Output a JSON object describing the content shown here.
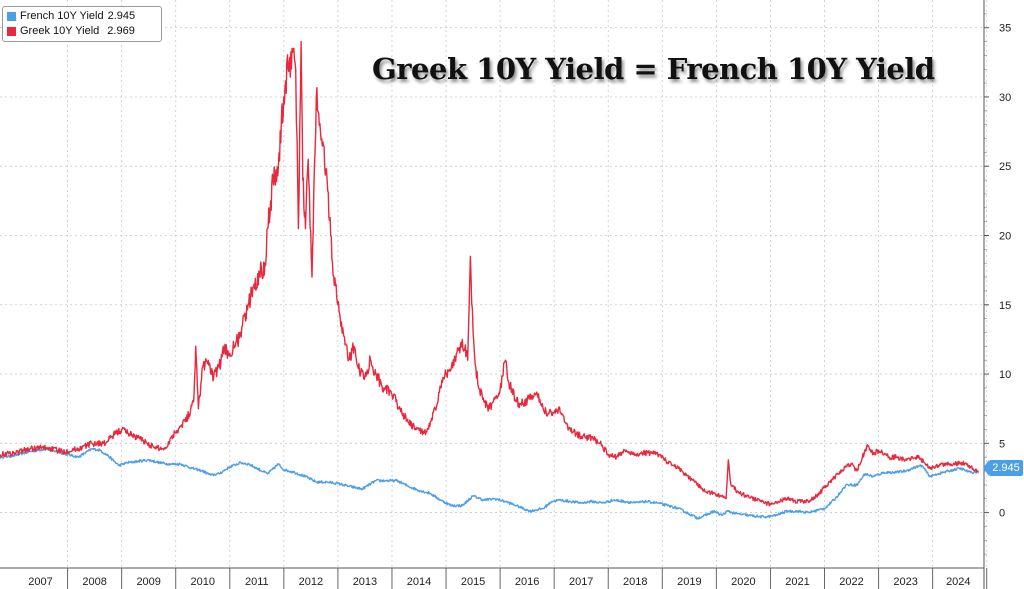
{
  "chart_data": {
    "type": "line",
    "title": "Greek 10Y Yield = French 10Y Yield",
    "xlabel": "",
    "ylabel": "",
    "x_tick_labels": [
      "2007",
      "2008",
      "2009",
      "2010",
      "2011",
      "2012",
      "2013",
      "2014",
      "2015",
      "2016",
      "2017",
      "2018",
      "2019",
      "2020",
      "2021",
      "2022",
      "2023",
      "2024"
    ],
    "y_ticks": [
      0,
      5,
      10,
      15,
      20,
      25,
      30,
      35
    ],
    "ylim": [
      -4,
      37
    ],
    "xlim": [
      2006.75,
      2024.95
    ],
    "grid": true,
    "legend_position": "top-left",
    "last_value_badge": "2.945",
    "series": [
      {
        "name": "French 10Y Yield",
        "legend_label": "French 10Y Yield",
        "last_value": "2.945",
        "color": "#4b9fe8",
        "points": [
          [
            2006.75,
            4.0
          ],
          [
            2007.0,
            4.1
          ],
          [
            2007.3,
            4.4
          ],
          [
            2007.6,
            4.6
          ],
          [
            2007.9,
            4.3
          ],
          [
            2008.2,
            4.0
          ],
          [
            2008.45,
            4.6
          ],
          [
            2008.6,
            4.5
          ],
          [
            2008.75,
            4.1
          ],
          [
            2008.95,
            3.4
          ],
          [
            2009.1,
            3.6
          ],
          [
            2009.3,
            3.7
          ],
          [
            2009.5,
            3.8
          ],
          [
            2009.7,
            3.6
          ],
          [
            2009.9,
            3.5
          ],
          [
            2010.1,
            3.5
          ],
          [
            2010.3,
            3.2
          ],
          [
            2010.5,
            3.0
          ],
          [
            2010.65,
            2.7
          ],
          [
            2010.8,
            2.8
          ],
          [
            2011.0,
            3.3
          ],
          [
            2011.2,
            3.6
          ],
          [
            2011.35,
            3.5
          ],
          [
            2011.5,
            3.2
          ],
          [
            2011.7,
            2.8
          ],
          [
            2011.9,
            3.5
          ],
          [
            2012.0,
            3.1
          ],
          [
            2012.2,
            2.9
          ],
          [
            2012.4,
            2.6
          ],
          [
            2012.6,
            2.2
          ],
          [
            2012.8,
            2.2
          ],
          [
            2013.0,
            2.1
          ],
          [
            2013.2,
            1.9
          ],
          [
            2013.45,
            1.7
          ],
          [
            2013.7,
            2.3
          ],
          [
            2013.9,
            2.3
          ],
          [
            2014.1,
            2.3
          ],
          [
            2014.3,
            1.9
          ],
          [
            2014.5,
            1.6
          ],
          [
            2014.7,
            1.4
          ],
          [
            2014.9,
            0.9
          ],
          [
            2015.1,
            0.5
          ],
          [
            2015.3,
            0.5
          ],
          [
            2015.5,
            1.2
          ],
          [
            2015.7,
            0.9
          ],
          [
            2015.9,
            1.0
          ],
          [
            2016.1,
            0.8
          ],
          [
            2016.3,
            0.5
          ],
          [
            2016.55,
            0.1
          ],
          [
            2016.8,
            0.3
          ],
          [
            2016.95,
            0.8
          ],
          [
            2017.1,
            0.9
          ],
          [
            2017.3,
            0.8
          ],
          [
            2017.5,
            0.7
          ],
          [
            2017.7,
            0.8
          ],
          [
            2017.9,
            0.7
          ],
          [
            2018.1,
            0.9
          ],
          [
            2018.3,
            0.8
          ],
          [
            2018.5,
            0.7
          ],
          [
            2018.7,
            0.8
          ],
          [
            2018.9,
            0.7
          ],
          [
            2019.1,
            0.5
          ],
          [
            2019.3,
            0.3
          ],
          [
            2019.5,
            -0.1
          ],
          [
            2019.65,
            -0.4
          ],
          [
            2019.8,
            -0.2
          ],
          [
            2019.95,
            0.1
          ],
          [
            2020.1,
            -0.2
          ],
          [
            2020.2,
            0.1
          ],
          [
            2020.4,
            -0.1
          ],
          [
            2020.6,
            -0.2
          ],
          [
            2020.8,
            -0.3
          ],
          [
            2020.95,
            -0.3
          ],
          [
            2021.1,
            -0.2
          ],
          [
            2021.3,
            0.1
          ],
          [
            2021.5,
            0.1
          ],
          [
            2021.7,
            0.0
          ],
          [
            2021.9,
            0.2
          ],
          [
            2022.0,
            0.3
          ],
          [
            2022.2,
            1.0
          ],
          [
            2022.4,
            2.0
          ],
          [
            2022.6,
            2.0
          ],
          [
            2022.75,
            2.8
          ],
          [
            2022.9,
            2.6
          ],
          [
            2023.1,
            2.9
          ],
          [
            2023.3,
            2.9
          ],
          [
            2023.5,
            3.0
          ],
          [
            2023.7,
            3.3
          ],
          [
            2023.8,
            3.4
          ],
          [
            2023.95,
            2.6
          ],
          [
            2024.1,
            2.8
          ],
          [
            2024.3,
            3.0
          ],
          [
            2024.5,
            3.2
          ],
          [
            2024.7,
            2.9
          ],
          [
            2024.85,
            2.945
          ]
        ]
      },
      {
        "name": "Greek 10Y Yield",
        "legend_label": "Greek 10Y Yield",
        "last_value": "2.969",
        "color": "#e8283c",
        "points": [
          [
            2006.75,
            4.2
          ],
          [
            2007.0,
            4.3
          ],
          [
            2007.3,
            4.6
          ],
          [
            2007.6,
            4.7
          ],
          [
            2007.9,
            4.4
          ],
          [
            2008.2,
            4.6
          ],
          [
            2008.45,
            5.0
          ],
          [
            2008.7,
            5.0
          ],
          [
            2008.85,
            5.6
          ],
          [
            2009.0,
            6.0
          ],
          [
            2009.2,
            5.6
          ],
          [
            2009.4,
            5.2
          ],
          [
            2009.6,
            4.7
          ],
          [
            2009.8,
            4.6
          ],
          [
            2009.95,
            5.6
          ],
          [
            2010.1,
            6.3
          ],
          [
            2010.25,
            7.1
          ],
          [
            2010.33,
            8.0
          ],
          [
            2010.37,
            12.0
          ],
          [
            2010.42,
            7.5
          ],
          [
            2010.5,
            10.5
          ],
          [
            2010.6,
            11.0
          ],
          [
            2010.7,
            9.7
          ],
          [
            2010.8,
            10.5
          ],
          [
            2010.9,
            11.8
          ],
          [
            2011.0,
            11.5
          ],
          [
            2011.1,
            12.0
          ],
          [
            2011.2,
            13.0
          ],
          [
            2011.35,
            15.0
          ],
          [
            2011.45,
            16.5
          ],
          [
            2011.55,
            17.2
          ],
          [
            2011.65,
            18.0
          ],
          [
            2011.7,
            20.5
          ],
          [
            2011.8,
            24.0
          ],
          [
            2011.9,
            25.0
          ],
          [
            2012.0,
            30.0
          ],
          [
            2012.1,
            32.5
          ],
          [
            2012.15,
            33.5
          ],
          [
            2012.22,
            32.0
          ],
          [
            2012.27,
            20.5
          ],
          [
            2012.32,
            34.0
          ],
          [
            2012.35,
            24.0
          ],
          [
            2012.4,
            20.5
          ],
          [
            2012.45,
            25.5
          ],
          [
            2012.52,
            17.0
          ],
          [
            2012.6,
            30.0
          ],
          [
            2012.7,
            27.0
          ],
          [
            2012.8,
            24.0
          ],
          [
            2012.9,
            18.0
          ],
          [
            2013.0,
            15.0
          ],
          [
            2013.1,
            13.0
          ],
          [
            2013.2,
            11.0
          ],
          [
            2013.3,
            12.0
          ],
          [
            2013.4,
            10.2
          ],
          [
            2013.5,
            9.8
          ],
          [
            2013.6,
            11.0
          ],
          [
            2013.7,
            10.0
          ],
          [
            2013.85,
            9.0
          ],
          [
            2014.0,
            8.5
          ],
          [
            2014.15,
            7.5
          ],
          [
            2014.3,
            6.5
          ],
          [
            2014.45,
            6.0
          ],
          [
            2014.6,
            5.8
          ],
          [
            2014.7,
            6.2
          ],
          [
            2014.8,
            7.5
          ],
          [
            2014.9,
            9.0
          ],
          [
            2015.0,
            10.0
          ],
          [
            2015.1,
            10.5
          ],
          [
            2015.2,
            11.5
          ],
          [
            2015.3,
            12.5
          ],
          [
            2015.4,
            11.0
          ],
          [
            2015.45,
            18.5
          ],
          [
            2015.5,
            13.0
          ],
          [
            2015.55,
            10.5
          ],
          [
            2015.6,
            9.0
          ],
          [
            2015.7,
            8.0
          ],
          [
            2015.8,
            7.5
          ],
          [
            2015.9,
            8.2
          ],
          [
            2016.0,
            8.9
          ],
          [
            2016.1,
            11.0
          ],
          [
            2016.15,
            9.5
          ],
          [
            2016.3,
            8.0
          ],
          [
            2016.45,
            7.8
          ],
          [
            2016.55,
            8.5
          ],
          [
            2016.7,
            8.3
          ],
          [
            2016.85,
            7.3
          ],
          [
            2017.0,
            7.2
          ],
          [
            2017.1,
            7.6
          ],
          [
            2017.2,
            6.5
          ],
          [
            2017.35,
            5.8
          ],
          [
            2017.5,
            5.5
          ],
          [
            2017.7,
            5.4
          ],
          [
            2017.85,
            5.0
          ],
          [
            2018.0,
            4.2
          ],
          [
            2018.15,
            4.0
          ],
          [
            2018.3,
            4.5
          ],
          [
            2018.5,
            4.2
          ],
          [
            2018.65,
            4.3
          ],
          [
            2018.8,
            4.3
          ],
          [
            2018.95,
            4.2
          ],
          [
            2019.1,
            3.6
          ],
          [
            2019.3,
            3.2
          ],
          [
            2019.5,
            2.5
          ],
          [
            2019.6,
            2.2
          ],
          [
            2019.8,
            1.5
          ],
          [
            2019.95,
            1.4
          ],
          [
            2020.1,
            1.2
          ],
          [
            2020.18,
            1.0
          ],
          [
            2020.22,
            3.8
          ],
          [
            2020.27,
            2.0
          ],
          [
            2020.4,
            1.5
          ],
          [
            2020.55,
            1.2
          ],
          [
            2020.7,
            1.0
          ],
          [
            2020.9,
            0.7
          ],
          [
            2021.0,
            0.6
          ],
          [
            2021.1,
            0.8
          ],
          [
            2021.3,
            1.0
          ],
          [
            2021.5,
            0.8
          ],
          [
            2021.7,
            0.8
          ],
          [
            2021.85,
            1.2
          ],
          [
            2022.0,
            1.8
          ],
          [
            2022.1,
            2.2
          ],
          [
            2022.25,
            2.8
          ],
          [
            2022.4,
            3.3
          ],
          [
            2022.5,
            3.5
          ],
          [
            2022.6,
            3.0
          ],
          [
            2022.7,
            4.0
          ],
          [
            2022.8,
            4.8
          ],
          [
            2022.9,
            4.2
          ],
          [
            2023.0,
            4.5
          ],
          [
            2023.1,
            4.2
          ],
          [
            2023.2,
            4.0
          ],
          [
            2023.35,
            4.0
          ],
          [
            2023.5,
            3.8
          ],
          [
            2023.65,
            3.9
          ],
          [
            2023.75,
            4.0
          ],
          [
            2023.85,
            3.6
          ],
          [
            2023.95,
            3.2
          ],
          [
            2024.1,
            3.4
          ],
          [
            2024.25,
            3.5
          ],
          [
            2024.4,
            3.5
          ],
          [
            2024.55,
            3.6
          ],
          [
            2024.7,
            3.3
          ],
          [
            2024.85,
            2.969
          ]
        ]
      }
    ]
  }
}
